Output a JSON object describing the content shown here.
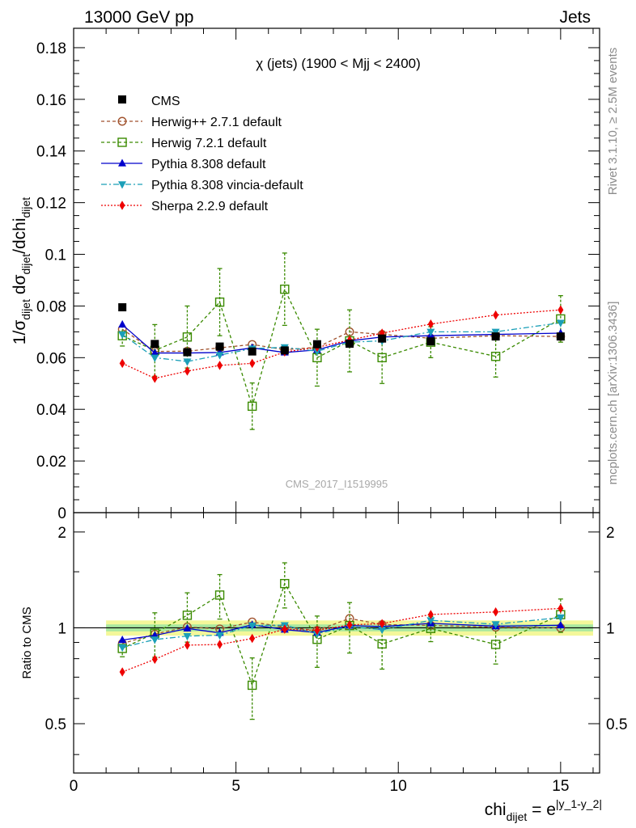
{
  "header": {
    "energy_label": "13000 GeV pp",
    "category_label": "Jets"
  },
  "side_labels": {
    "rivet": "Rivet 3.1.10, ≥ 2.5M events",
    "mcplots": "mcplots.cern.ch [arXiv:1306.3436]"
  },
  "chart_data": {
    "type": "scatter",
    "title": "χ (jets) (1900 < Mjj < 2400)",
    "watermark": "CMS_2017_I1519995",
    "xlabel": {
      "main": "chi",
      "sub": "dijet",
      "eq": " = e",
      "sup": "|y_1-y_2|"
    },
    "ylabel": {
      "p1": "1/σ",
      "s1": "dijet",
      "p2": " dσ",
      "s2": "dijet",
      "p3": "/dchi",
      "s3": "dijet"
    },
    "ratio_ylabel": "Ratio to CMS",
    "xlim": [
      0,
      16.2
    ],
    "ylim": [
      0,
      0.1875
    ],
    "ratio_ylim": [
      0.35,
      2.3
    ],
    "x_ticks": [
      0,
      5,
      10,
      15
    ],
    "y_ticks": [
      0,
      0.02,
      0.04,
      0.06,
      0.08,
      0.1,
      0.12,
      0.14,
      0.16,
      0.18
    ],
    "y_tick_labels": [
      "0",
      "0.02",
      "0.04",
      "0.06",
      "0.08",
      "0.1",
      "0.12",
      "0.14",
      "0.16",
      "0.18"
    ],
    "ratio_ticks": [
      0.5,
      1,
      2
    ],
    "ratio_tick_labels": [
      "0.5",
      "1",
      "2"
    ],
    "x": [
      1.5,
      2.5,
      3.5,
      4.5,
      5.5,
      6.5,
      7.5,
      8.5,
      9.5,
      11,
      13,
      15
    ],
    "x_bins": [
      [
        1,
        2
      ],
      [
        2,
        3
      ],
      [
        3,
        4
      ],
      [
        4,
        5
      ],
      [
        5,
        6
      ],
      [
        6,
        7
      ],
      [
        7,
        8
      ],
      [
        8,
        9
      ],
      [
        9,
        10
      ],
      [
        10,
        12
      ],
      [
        12,
        14
      ],
      [
        14,
        16
      ]
    ],
    "data": {
      "name": "CMS",
      "values": [
        0.0795,
        0.0653,
        0.0621,
        0.0643,
        0.0624,
        0.0628,
        0.0652,
        0.0654,
        0.0674,
        0.0663,
        0.0682,
        0.0682
      ]
    },
    "band": {
      "inner": 0.025,
      "outer": 0.055
    },
    "series": [
      {
        "name": "Herwig++ 2.7.1 default",
        "color": "#a0522d",
        "marker": "circle-open",
        "dash": "4,3",
        "values": [
          0.071,
          0.0624,
          0.0625,
          0.0638,
          0.0651,
          0.0631,
          0.064,
          0.07,
          0.069,
          0.0675,
          0.0685,
          0.0682
        ],
        "errors": [
          0.0015,
          0.0015,
          0.0015,
          0.0015,
          0.0015,
          0.0015,
          0.0015,
          0.0015,
          0.0015,
          0.0015,
          0.0015,
          0.0015
        ]
      },
      {
        "name": "Herwig 7.2.1 default",
        "color": "#3a8a00",
        "marker": "square-open",
        "dash": "4,3",
        "values": [
          0.0685,
          0.0628,
          0.068,
          0.0815,
          0.0412,
          0.0865,
          0.06,
          0.0665,
          0.06,
          0.066,
          0.0605,
          0.075
        ],
        "errors": [
          0.004,
          0.01,
          0.012,
          0.013,
          0.009,
          0.014,
          0.011,
          0.012,
          0.01,
          0.006,
          0.008,
          0.009
        ]
      },
      {
        "name": "Pythia 8.308 default",
        "color": "#0000cc",
        "marker": "triangle-up",
        "dash": "",
        "values": [
          0.0728,
          0.0618,
          0.0618,
          0.062,
          0.0638,
          0.062,
          0.063,
          0.0665,
          0.068,
          0.0685,
          0.069,
          0.0695
        ],
        "errors": [
          0.001,
          0.001,
          0.001,
          0.001,
          0.001,
          0.001,
          0.001,
          0.001,
          0.001,
          0.001,
          0.001,
          0.001
        ]
      },
      {
        "name": "Pythia 8.308 vincia-default",
        "color": "#1b9fb8",
        "marker": "triangle-down",
        "dash": "7,3,2,3",
        "values": [
          0.069,
          0.06,
          0.0585,
          0.061,
          0.0635,
          0.064,
          0.0625,
          0.066,
          0.0665,
          0.07,
          0.07,
          0.0735
        ],
        "errors": [
          0.001,
          0.001,
          0.001,
          0.001,
          0.001,
          0.001,
          0.001,
          0.001,
          0.001,
          0.001,
          0.001,
          0.001
        ]
      },
      {
        "name": "Sherpa 2.2.9 default",
        "color": "#ee0000",
        "marker": "diamond",
        "dash": "2,2",
        "values": [
          0.0578,
          0.052,
          0.0548,
          0.057,
          0.0578,
          0.0622,
          0.064,
          0.0668,
          0.0695,
          0.073,
          0.0765,
          0.0785
        ],
        "errors": [
          0.001,
          0.001,
          0.001,
          0.001,
          0.001,
          0.001,
          0.001,
          0.001,
          0.001,
          0.001,
          0.001,
          0.001
        ]
      }
    ]
  }
}
